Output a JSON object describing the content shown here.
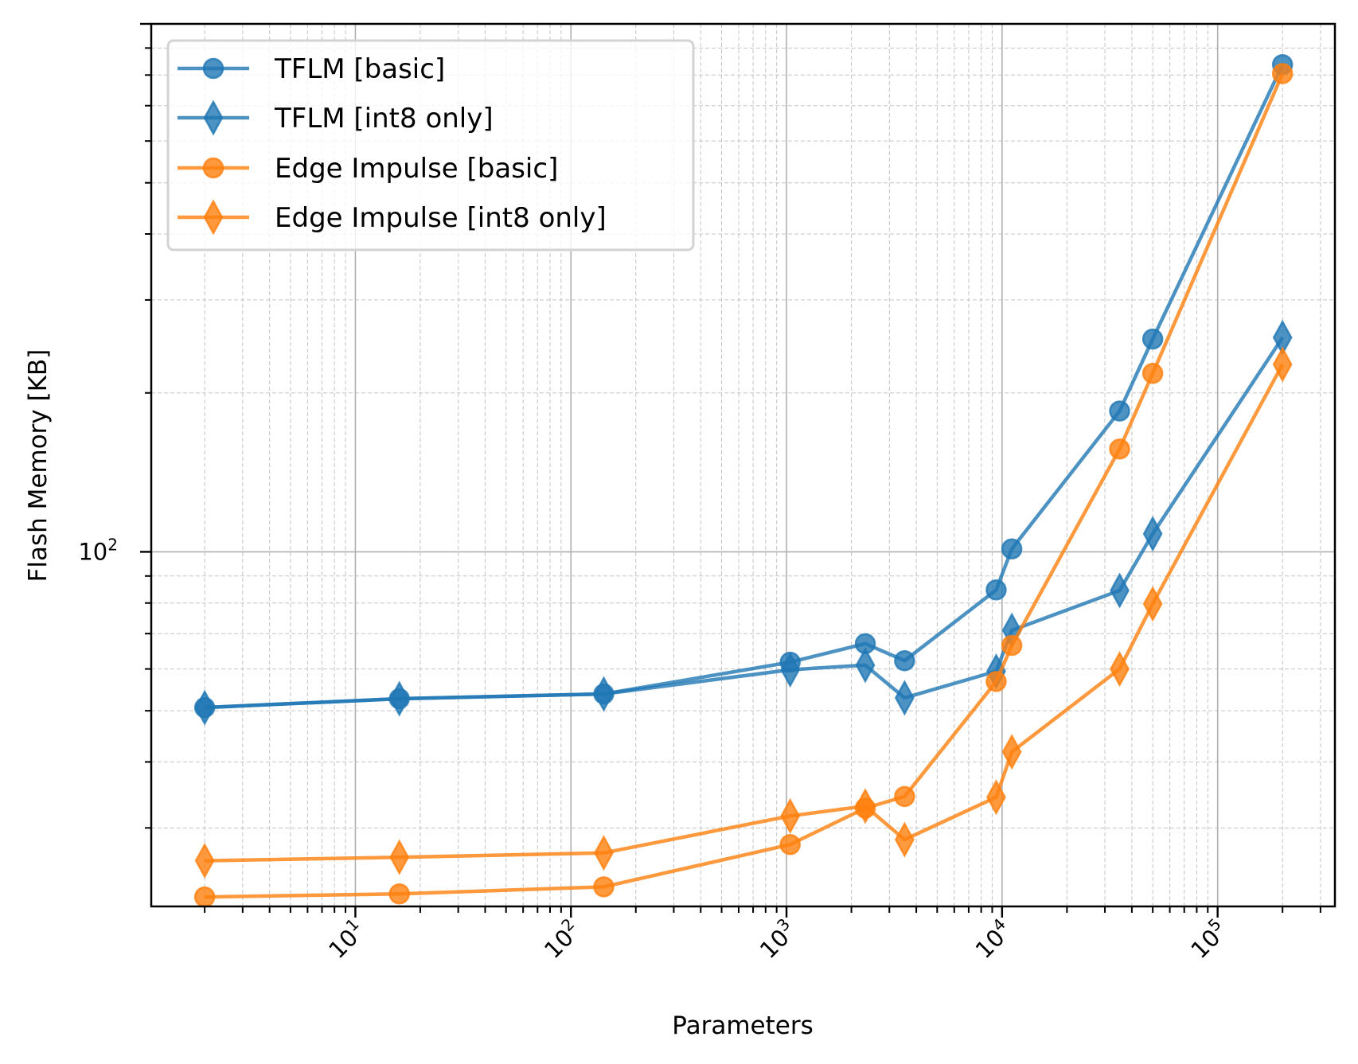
{
  "chart_data": {
    "type": "line",
    "title": "",
    "xlabel": "Parameters",
    "ylabel": "Flash Memory [KB]",
    "xscale": "log",
    "yscale": "log",
    "xlim": [
      1.13,
      350000
    ],
    "ylim": [
      21.3,
      1000
    ],
    "grid": {
      "major": true,
      "minor": true,
      "minor_style": "dashed"
    },
    "x_tick_labels": [
      {
        "value": 10,
        "base": "10",
        "exp": "1"
      },
      {
        "value": 100,
        "base": "10",
        "exp": "2"
      },
      {
        "value": 1000,
        "base": "10",
        "exp": "3"
      },
      {
        "value": 10000,
        "base": "10",
        "exp": "4"
      },
      {
        "value": 100000,
        "base": "10",
        "exp": "5"
      }
    ],
    "y_tick_labels": [
      {
        "value": 100,
        "base": "10",
        "exp": "2"
      }
    ],
    "legend_position": "top-left",
    "series": [
      {
        "name": "TFLM [basic]",
        "color": "#1f77b4",
        "marker": "circle",
        "x": [
          2,
          16,
          142,
          1040,
          2320,
          3530,
          9390,
          11100,
          35100,
          50000,
          200000
        ],
        "y": [
          50.7,
          52.7,
          53.8,
          61.8,
          67.0,
          62.2,
          84.7,
          101.3,
          184.8,
          253,
          837
        ]
      },
      {
        "name": "TFLM [int8 only]",
        "color": "#1f77b4",
        "marker": "thin_diamond",
        "x": [
          2,
          16,
          142,
          1040,
          2320,
          3530,
          9390,
          11100,
          35100,
          50000,
          200000
        ],
        "y": [
          50.7,
          52.7,
          53.8,
          59.8,
          61.0,
          52.9,
          59.4,
          71.0,
          84.5,
          108.2,
          254.6
        ]
      },
      {
        "name": "Edge Impulse [basic]",
        "color": "#ff7f0e",
        "marker": "circle",
        "x": [
          2,
          16,
          142,
          1040,
          2320,
          3530,
          9390,
          11100,
          35100,
          50000,
          200000
        ],
        "y": [
          22.2,
          22.5,
          23.2,
          27.9,
          32.7,
          34.4,
          56.8,
          66.5,
          156.6,
          217.8,
          805
        ]
      },
      {
        "name": "Edge Impulse [int8 only]",
        "color": "#ff7f0e",
        "marker": "thin_diamond",
        "x": [
          2,
          16,
          142,
          1040,
          2320,
          3530,
          9390,
          11100,
          35100,
          50000,
          200000
        ],
        "y": [
          26.0,
          26.4,
          26.9,
          31.6,
          33.0,
          28.5,
          34.3,
          41.8,
          60.0,
          79.7,
          226.5
        ]
      }
    ]
  }
}
